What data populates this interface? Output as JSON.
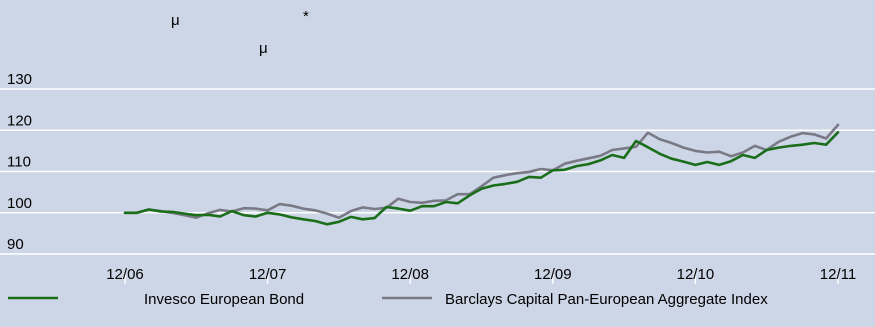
{
  "header_glyphs": {
    "mu_a": "μ",
    "mu_b": "μ",
    "asterisk": "*"
  },
  "chart_data": {
    "type": "line",
    "title": "",
    "xlabel": "",
    "ylabel": "",
    "x_ticks": [
      "12/06",
      "12/07",
      "12/08",
      "12/09",
      "12/10",
      "12/11"
    ],
    "y_ticks": [
      90,
      100,
      110,
      120,
      130
    ],
    "xlim": [
      0,
      60
    ],
    "ylim": [
      85,
      130
    ],
    "grid": "horizontal",
    "legend_position": "bottom",
    "x_months_since_12_06": [
      0,
      1,
      2,
      3,
      4,
      5,
      6,
      7,
      8,
      9,
      10,
      11,
      12,
      13,
      14,
      15,
      16,
      17,
      18,
      19,
      20,
      21,
      22,
      23,
      24,
      25,
      26,
      27,
      28,
      29,
      30,
      31,
      32,
      33,
      34,
      35,
      36,
      37,
      38,
      39,
      40,
      41,
      42,
      43,
      44,
      45,
      46,
      47,
      48,
      49,
      50,
      51,
      52,
      53,
      54,
      55,
      56,
      57,
      58,
      59,
      60
    ],
    "series": [
      {
        "name": "Invesco European Bond",
        "color": "#1a6e1a",
        "values": [
          100,
          100,
          100.8,
          100.3,
          100.2,
          99.8,
          99.4,
          99.5,
          99.1,
          100.4,
          99.4,
          99.1,
          100,
          99.6,
          98.9,
          98.4,
          98,
          97.2,
          97.8,
          99,
          98.4,
          98.7,
          101.4,
          101,
          100.5,
          101.6,
          101.6,
          102.6,
          102.3,
          104.2,
          105.8,
          106.6,
          107,
          107.5,
          108.7,
          108.5,
          110.3,
          110.4,
          111.3,
          111.8,
          112.7,
          114,
          113.3,
          117.4,
          115.9,
          114.3,
          113.1,
          112.4,
          111.6,
          112.3,
          111.6,
          112.5,
          114,
          113.3,
          115.2,
          115.8,
          116.2,
          116.5,
          116.9,
          116.5,
          119.5
        ]
      },
      {
        "name": "Barclays Capital Pan-European Aggregate Index",
        "color": "#7a7a86",
        "values": [
          100,
          100,
          100.8,
          100.4,
          100,
          99.4,
          98.8,
          99.9,
          100.7,
          100.3,
          101.1,
          101,
          100.6,
          102.1,
          101.7,
          101,
          100.6,
          99.8,
          98.8,
          100.4,
          101.3,
          100.9,
          101.2,
          103.4,
          102.6,
          102.4,
          102.9,
          103,
          104.5,
          104.5,
          106.4,
          108.5,
          109.1,
          109.6,
          109.9,
          110.6,
          110.3,
          111.9,
          112.6,
          113.2,
          113.8,
          115.2,
          115.6,
          116,
          119.4,
          117.8,
          116.9,
          115.8,
          115,
          114.6,
          114.8,
          113.7,
          114.6,
          116.2,
          115.2,
          117.2,
          118.4,
          119.3,
          119,
          118,
          121.3
        ]
      }
    ]
  }
}
